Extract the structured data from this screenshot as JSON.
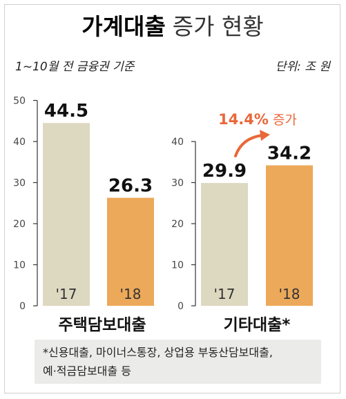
{
  "title": {
    "bold": "가계대출",
    "light": "증가 현황"
  },
  "subtitle_left": "1~10월 전 금융권 기준",
  "subtitle_right": "단위: 조 원",
  "colors": {
    "bar_2017": "#ddd8c0",
    "bar_2018": "#eca95a",
    "accent": "#e8683a",
    "axis": "#333333"
  },
  "chart_data": [
    {
      "type": "bar",
      "title": "주택담보대출",
      "categories": [
        "'17",
        "'18"
      ],
      "values": [
        44.5,
        26.3
      ],
      "value_labels": [
        "44.5",
        "26.3"
      ],
      "yticks": [
        "0",
        "10",
        "20",
        "30",
        "40",
        "50"
      ],
      "ylim": [
        0,
        50
      ],
      "grid": false
    },
    {
      "type": "bar",
      "title": "기타대출*",
      "categories": [
        "'17",
        "'18"
      ],
      "values": [
        29.9,
        34.2
      ],
      "value_labels": [
        "29.9",
        "34.2"
      ],
      "yticks": [
        "0",
        "10",
        "20",
        "30",
        "40"
      ],
      "ylim": [
        0,
        40
      ],
      "grid": false,
      "annotation": {
        "value": "14.4%",
        "suffix": "증가"
      }
    }
  ],
  "footnote": {
    "line1": "*신용대출, 마이너스통장, 상업용 부동산담보대출,",
    "line2": "예·적금담보대출 등"
  }
}
